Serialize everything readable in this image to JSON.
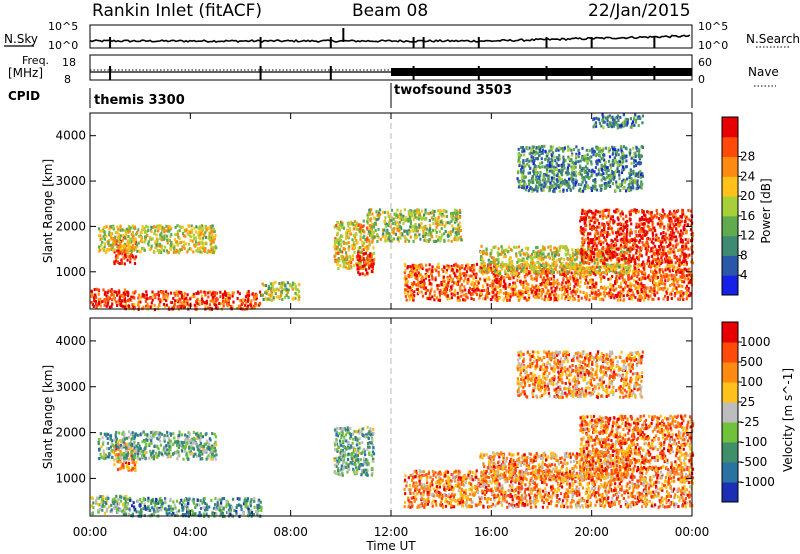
{
  "header": {
    "title": "Rankin Inlet (fitACF)",
    "beam": "Beam 08",
    "date": "22/Jan/2015"
  },
  "colors": {
    "sky_line": "#000000",
    "vline": "#bbbbbb",
    "dots_grey": "#b9b9b9"
  },
  "panels": {
    "nsky": {
      "label": "N.Sky",
      "tick_top": "10^5",
      "tick_bottom": "10^0",
      "right_label": "N.Search",
      "right_tick_top": "10^5",
      "right_tick_bottom": "10^0"
    },
    "freq": {
      "label_line1": "Freq.",
      "label_line2": "[MHz]",
      "tick_top": "18",
      "tick_bottom": "8",
      "right_label": "Nave",
      "right_tick_top": "60",
      "right_tick_bottom": "0"
    },
    "cpid": {
      "label": "CPID",
      "mode1": "themis 3300",
      "mode2": "twofsound 3503"
    }
  },
  "chart_data": [
    {
      "type": "heatmap",
      "name": "power",
      "ylabel": "Slant Range [km]",
      "xlabel": "Time UT",
      "x_ticks": [
        "00:00",
        "04:00",
        "08:00",
        "12:00",
        "16:00",
        "20:00",
        "00:00"
      ],
      "x_range_hours": [
        0,
        24
      ],
      "y_ticks": [
        "1000",
        "2000",
        "3000",
        "4000"
      ],
      "y_range_km": [
        180,
        4500
      ],
      "mode_change_hour": 12.0,
      "colorbar": {
        "label": "Power [dB]",
        "ticks": [
          "4",
          "8",
          "12",
          "16",
          "20",
          "24",
          "28"
        ],
        "range": [
          0,
          32
        ],
        "colors": [
          "#1620e6",
          "#2a58a8",
          "#3f8a73",
          "#5fab4e",
          "#a6cf3a",
          "#ffc21a",
          "#ff8a12",
          "#ff4a0a",
          "#e60000"
        ]
      },
      "blobs": [
        {
          "t": [
            0.0,
            1.4
          ],
          "r": [
            250,
            650
          ],
          "level": 0.9
        },
        {
          "t": [
            1.3,
            6.8
          ],
          "r": [
            200,
            600
          ],
          "level": 0.85
        },
        {
          "t": [
            0.9,
            1.8
          ],
          "r": [
            1200,
            1800
          ],
          "level": 0.85
        },
        {
          "t": [
            0.3,
            5.0
          ],
          "r": [
            1450,
            2050
          ],
          "level": 0.55
        },
        {
          "t": [
            6.8,
            8.3
          ],
          "r": [
            400,
            800
          ],
          "level": 0.5
        },
        {
          "t": [
            9.7,
            11.3
          ],
          "r": [
            1100,
            2150
          ],
          "level": 0.6
        },
        {
          "t": [
            10.6,
            11.3
          ],
          "r": [
            950,
            1450
          ],
          "level": 0.9
        },
        {
          "t": [
            11.0,
            14.8
          ],
          "r": [
            1700,
            2400
          ],
          "level": 0.5
        },
        {
          "t": [
            12.5,
            24.0
          ],
          "r": [
            400,
            1200
          ],
          "level": 0.8
        },
        {
          "t": [
            15.5,
            21.5
          ],
          "r": [
            1000,
            1600
          ],
          "level": 0.55
        },
        {
          "t": [
            19.5,
            24.0
          ],
          "r": [
            1200,
            2400
          ],
          "level": 0.9
        },
        {
          "t": [
            17.0,
            22.0
          ],
          "r": [
            2800,
            3800
          ],
          "level": 0.3
        },
        {
          "t": [
            20.0,
            22.0
          ],
          "r": [
            4200,
            4500
          ],
          "level": 0.25
        }
      ]
    },
    {
      "type": "heatmap",
      "name": "velocity",
      "ylabel": "Slant Range [km]",
      "xlabel": "Time UT",
      "x_ticks": [
        "00:00",
        "04:00",
        "08:00",
        "12:00",
        "16:00",
        "20:00",
        "00:00"
      ],
      "x_range_hours": [
        0,
        24
      ],
      "y_ticks": [
        "1000",
        "2000",
        "3000",
        "4000"
      ],
      "y_range_km": [
        180,
        4500
      ],
      "mode_change_hour": 12.0,
      "colorbar": {
        "label": "Velocity [m s^-1]",
        "ticks": [
          "1000",
          "500",
          "100",
          "25",
          "-25",
          "-100",
          "-500",
          "-1000"
        ],
        "range": [
          -1000,
          1000
        ],
        "colors": [
          "#1c2eb4",
          "#2a72a0",
          "#3f8f6a",
          "#6fc23a",
          "#bdbdbd",
          "#ffc21a",
          "#ff8a12",
          "#ff4a0a",
          "#e60000"
        ]
      },
      "blobs": [
        {
          "t": [
            0.0,
            1.4
          ],
          "r": [
            250,
            650
          ],
          "level": 0.4
        },
        {
          "t": [
            1.3,
            6.8
          ],
          "r": [
            200,
            600
          ],
          "level": 0.3
        },
        {
          "t": [
            0.9,
            1.8
          ],
          "r": [
            1200,
            1800
          ],
          "level": 0.7
        },
        {
          "t": [
            0.3,
            5.0
          ],
          "r": [
            1450,
            2050
          ],
          "level": 0.35
        },
        {
          "t": [
            9.7,
            11.3
          ],
          "r": [
            1100,
            2150
          ],
          "level": 0.35
        },
        {
          "t": [
            12.5,
            24.0
          ],
          "r": [
            400,
            1200
          ],
          "level": 0.72
        },
        {
          "t": [
            15.5,
            21.5
          ],
          "r": [
            1000,
            1600
          ],
          "level": 0.7
        },
        {
          "t": [
            19.5,
            24.0
          ],
          "r": [
            1200,
            2400
          ],
          "level": 0.75
        },
        {
          "t": [
            17.0,
            22.0
          ],
          "r": [
            2800,
            3800
          ],
          "level": 0.7
        }
      ]
    }
  ]
}
